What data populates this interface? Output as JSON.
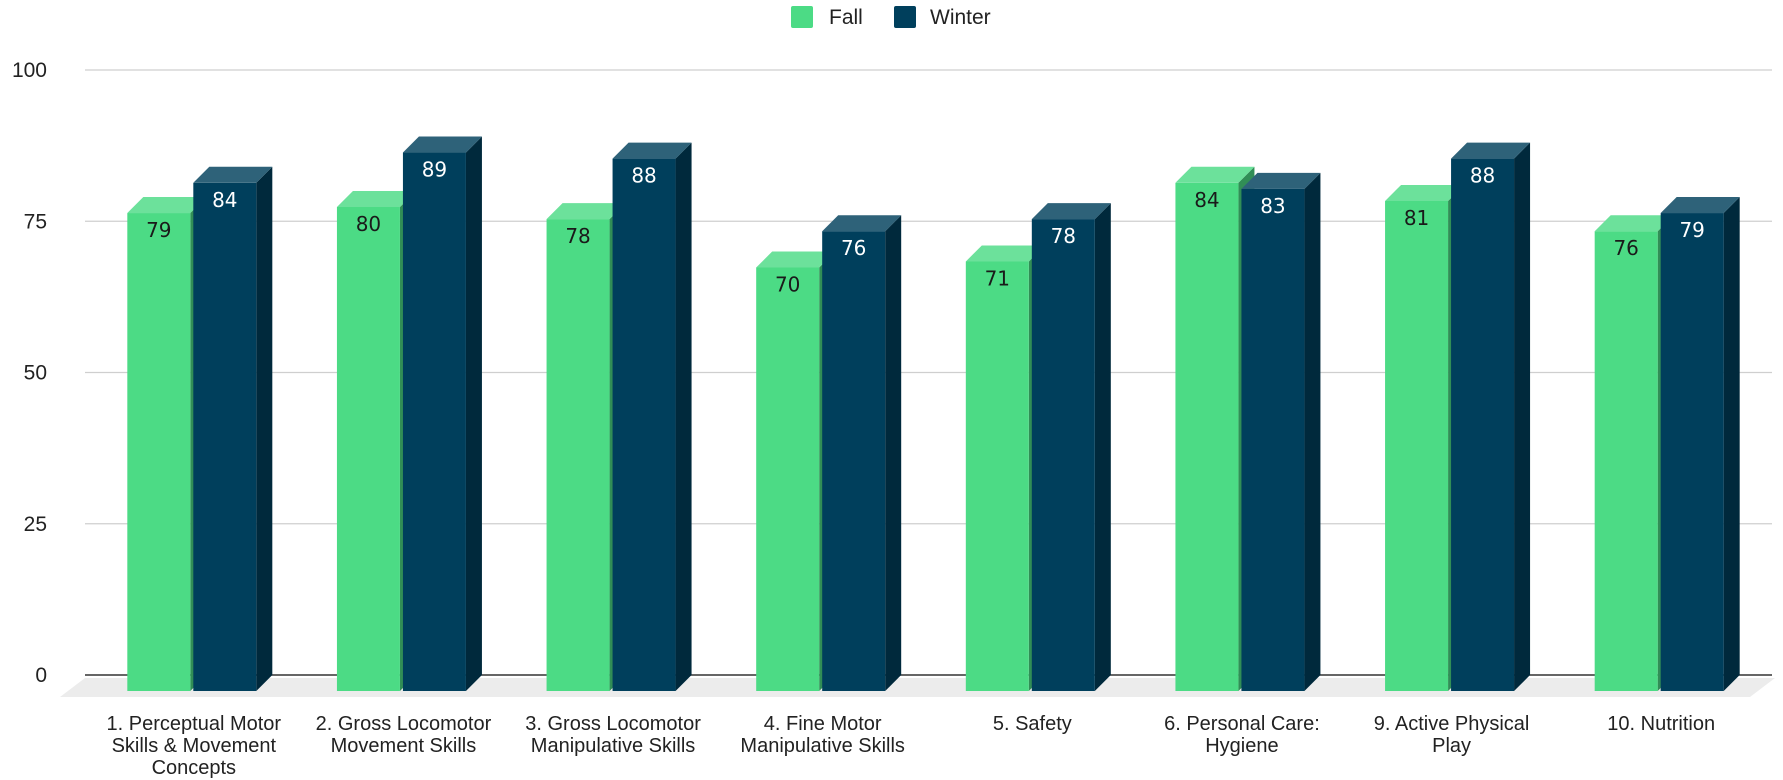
{
  "chart_data": {
    "type": "bar",
    "style": "3d-column",
    "categories": [
      "1. Perceptual Motor Skills & Movement Concepts",
      "2. Gross Locomotor Movement Skills",
      "3. Gross Locomotor Manipulative Skills",
      "4. Fine Motor Manipulative Skills",
      "5. Safety",
      "6. Personal Care: Hygiene",
      "9. Active Physical Play",
      "10. Nutrition"
    ],
    "category_label_lines": [
      [
        "1. Perceptual Motor",
        "Skills & Movement",
        "Concepts"
      ],
      [
        "2. Gross Locomotor",
        "Movement Skills"
      ],
      [
        "3. Gross Locomotor",
        "Manipulative Skills"
      ],
      [
        "4. Fine Motor",
        "Manipulative Skills"
      ],
      [
        "5. Safety"
      ],
      [
        "6. Personal Care:",
        "Hygiene"
      ],
      [
        "9. Active Physical",
        "Play"
      ],
      [
        "10. Nutrition"
      ]
    ],
    "series": [
      {
        "name": "Fall",
        "values": [
          79,
          80,
          78,
          70,
          71,
          84,
          81,
          76
        ],
        "color": "#4cdb85",
        "label_color": "#1a1a1a"
      },
      {
        "name": "Winter",
        "values": [
          84,
          89,
          88,
          76,
          78,
          83,
          88,
          79
        ],
        "color": "#003f5c",
        "label_color": "#ffffff"
      }
    ],
    "ylim": [
      0,
      100
    ],
    "yticks": [
      0,
      25,
      50,
      75,
      100
    ],
    "ytick_labels": [
      "0",
      "25",
      "50",
      "75",
      "100"
    ],
    "grid": true,
    "legend_position": "top-center",
    "title": "",
    "xlabel": "",
    "ylabel": ""
  }
}
